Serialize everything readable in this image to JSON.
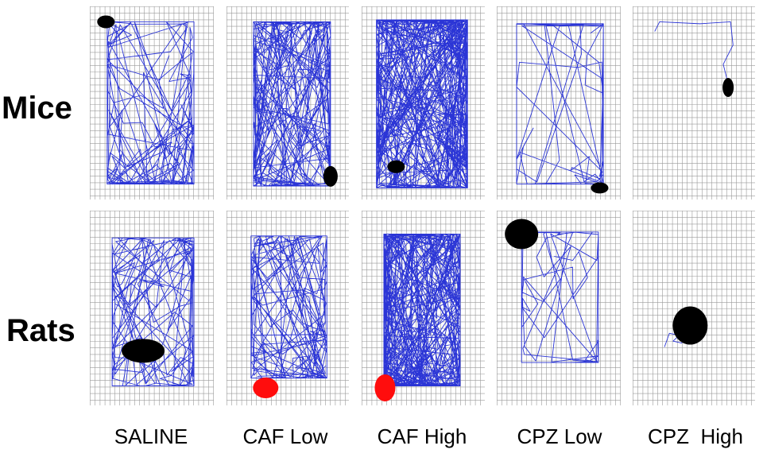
{
  "figure": {
    "rows": [
      {
        "label": "Mice",
        "key": "mice"
      },
      {
        "label": "Rats",
        "key": "rats"
      }
    ],
    "columns": [
      {
        "label": "SALINE",
        "key": "saline"
      },
      {
        "label": "CAF Low",
        "key": "caf_low"
      },
      {
        "label": "CAF High",
        "key": "caf_high"
      },
      {
        "label": "CPZ Low",
        "key": "cpz_low"
      },
      {
        "label": "CPZ  High",
        "key": "cpz_high"
      }
    ]
  },
  "colors": {
    "path": "#2b35d6",
    "grid": "#9a9a9a",
    "marker_black": "#000000",
    "marker_red": "#ff0d0d"
  },
  "panels": [
    {
      "row": "mice",
      "col": "saline",
      "density": "medium",
      "marker": {
        "color": "black",
        "shape": "small-oval"
      }
    },
    {
      "row": "mice",
      "col": "caf_low",
      "density": "high",
      "marker": {
        "color": "black",
        "shape": "small-oval"
      }
    },
    {
      "row": "mice",
      "col": "caf_high",
      "density": "very-high",
      "marker": {
        "color": "black",
        "shape": "small-oval"
      }
    },
    {
      "row": "mice",
      "col": "cpz_low",
      "density": "low",
      "marker": {
        "color": "black",
        "shape": "small-oval"
      }
    },
    {
      "row": "mice",
      "col": "cpz_high",
      "density": "minimal",
      "marker": {
        "color": "black",
        "shape": "small-oval"
      }
    },
    {
      "row": "rats",
      "col": "saline",
      "density": "medium",
      "marker": {
        "color": "black",
        "shape": "large-oval"
      }
    },
    {
      "row": "rats",
      "col": "caf_low",
      "density": "medium",
      "marker": {
        "color": "red",
        "shape": "oval"
      }
    },
    {
      "row": "rats",
      "col": "caf_high",
      "density": "very-high",
      "marker": {
        "color": "red",
        "shape": "oval"
      }
    },
    {
      "row": "rats",
      "col": "cpz_low",
      "density": "low",
      "marker": {
        "color": "black",
        "shape": "circle"
      }
    },
    {
      "row": "rats",
      "col": "cpz_high",
      "density": "minimal",
      "marker": {
        "color": "black",
        "shape": "circle"
      }
    }
  ]
}
